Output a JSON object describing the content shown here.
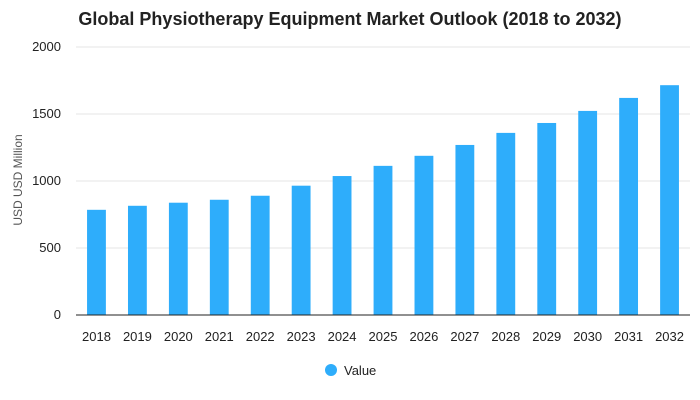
{
  "chart_data": {
    "type": "bar",
    "title": "Global Physiotherapy Equipment Market Outlook (2018 to 2032)",
    "xlabel": "",
    "ylabel": "USD USD Million",
    "categories": [
      "2018",
      "2019",
      "2020",
      "2021",
      "2022",
      "2023",
      "2024",
      "2025",
      "2026",
      "2027",
      "2028",
      "2029",
      "2030",
      "2031",
      "2032"
    ],
    "series": [
      {
        "name": "Value",
        "values": [
          785,
          815,
          838,
          860,
          890,
          965,
          1037,
          1113,
          1188,
          1269,
          1359,
          1433,
          1523,
          1620,
          1715
        ]
      }
    ],
    "yticks": [
      0,
      500,
      1000,
      1500,
      2000
    ],
    "ylim": [
      0,
      2000
    ],
    "grid": true,
    "legend_position": "bottom",
    "colors": {
      "bar": "#2EADFB"
    }
  }
}
